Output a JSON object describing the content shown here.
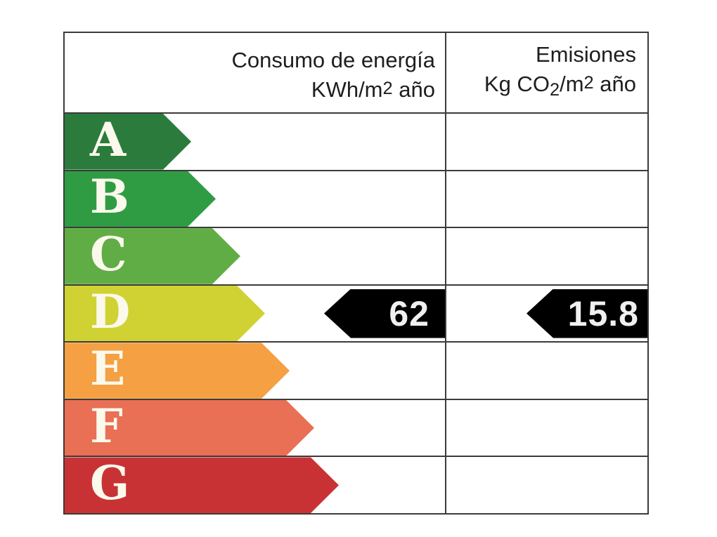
{
  "header": {
    "consumo": {
      "line1": "Consumo de energía",
      "unit_prefix": "KWh/m",
      "unit_sup": "2",
      "unit_suffix": " año"
    },
    "emisiones": {
      "line1": "Emisiones",
      "unit_prefix": "Kg CO",
      "unit_sub": "2",
      "unit_mid": "/m",
      "unit_sup": "2",
      "unit_suffix": " año"
    }
  },
  "ratings": [
    {
      "letter": "A",
      "color": "#2b7b3d"
    },
    {
      "letter": "B",
      "color": "#2f9c44"
    },
    {
      "letter": "C",
      "color": "#61ad45"
    },
    {
      "letter": "D",
      "color": "#d0d233"
    },
    {
      "letter": "E",
      "color": "#f4a043"
    },
    {
      "letter": "F",
      "color": "#e96f55"
    },
    {
      "letter": "G",
      "color": "#c93234"
    }
  ],
  "indicators": {
    "rating_letter": "D",
    "consumption_value": "62",
    "emissions_value": "15.8",
    "arrow_color": "#000000",
    "text_color": "#f0f0f0"
  },
  "style_colors": {
    "border": "#3b3b39",
    "letter_text": "#fbf9ec",
    "header_text": "#1e1e1e"
  },
  "chart_data": {
    "type": "table",
    "title": "",
    "columns": [
      "Consumo de energía KWh/m2 año",
      "Emisiones Kg CO2/m2 año"
    ],
    "scale_categories": [
      "A",
      "B",
      "C",
      "D",
      "E",
      "F",
      "G"
    ],
    "scale_colors": [
      "#2b7b3d",
      "#2f9c44",
      "#61ad45",
      "#d0d233",
      "#f4a043",
      "#e96f55",
      "#c93234"
    ],
    "rated_class": "D",
    "values": [
      {
        "metric": "Consumo de energía (KWh/m2 año)",
        "value": 62,
        "class": "D"
      },
      {
        "metric": "Emisiones (Kg CO2/m2 año)",
        "value": 15.8,
        "class": "D"
      }
    ],
    "layout_hints": {
      "scale_arrows_point": "right",
      "value_arrows_point": "left",
      "grid": "on"
    }
  }
}
